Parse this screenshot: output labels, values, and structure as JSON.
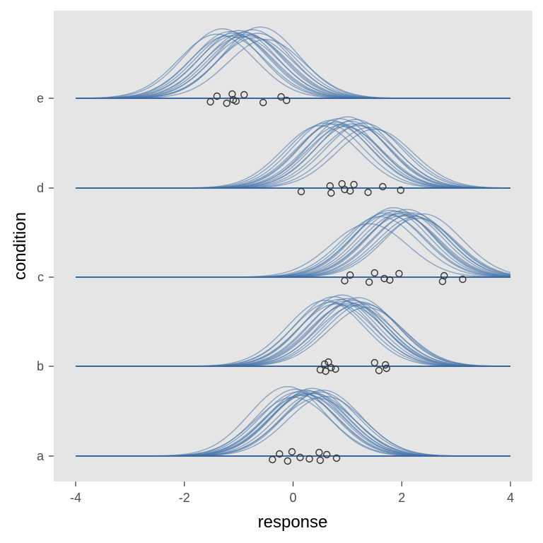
{
  "chart_data": {
    "type": "line",
    "title": "",
    "xlabel": "response",
    "ylabel": "condition",
    "xlim": [
      -4,
      4
    ],
    "x_ticks": [
      -4,
      -2,
      0,
      2,
      4
    ],
    "x_tick_labels": [
      "-4",
      "-2",
      "0",
      "2",
      "4"
    ],
    "categories": [
      "a",
      "b",
      "c",
      "d",
      "e"
    ],
    "grid": false,
    "legend": "none",
    "colors": {
      "panel_background": "#e5e5e5",
      "curve": "#4a77aa",
      "baseline": "#3a68a3",
      "point_stroke": "#333333",
      "tick": "#333333",
      "tick_label": "#4d4d4d"
    },
    "curve_sd": 0.7,
    "groups": [
      {
        "condition": "a",
        "points": [
          -0.38,
          -0.25,
          -0.1,
          -0.02,
          0.13,
          0.3,
          0.48,
          0.5,
          0.62,
          0.8
        ],
        "curve_means": [
          -0.1,
          0.0,
          0.05,
          0.1,
          0.15,
          0.2,
          0.22,
          0.25,
          0.3,
          0.3,
          0.35,
          0.4,
          0.45,
          0.5,
          0.55,
          0.6
        ],
        "curve_peaks": [
          0.78,
          0.66,
          0.75,
          0.72,
          0.68,
          0.7,
          0.74,
          0.69,
          0.71,
          0.73,
          0.76,
          0.7,
          0.65,
          0.72,
          0.74,
          0.67
        ]
      },
      {
        "condition": "b",
        "points": [
          0.5,
          0.58,
          0.6,
          0.65,
          0.7,
          0.78,
          1.5,
          1.58,
          1.7,
          1.72
        ],
        "curve_means": [
          0.6,
          0.7,
          0.75,
          0.8,
          0.85,
          0.9,
          0.95,
          1.0,
          1.0,
          1.05,
          1.1,
          1.15,
          1.2,
          1.25,
          1.3,
          1.35
        ],
        "curve_peaks": [
          0.74,
          0.72,
          0.78,
          0.7,
          0.75,
          0.8,
          0.73,
          0.69,
          0.76,
          0.71,
          0.74,
          0.68,
          0.77,
          0.72,
          0.7,
          0.66
        ]
      },
      {
        "condition": "c",
        "points": [
          0.95,
          1.05,
          1.4,
          1.5,
          1.68,
          1.78,
          1.95,
          2.75,
          2.78,
          3.12
        ],
        "curve_means": [
          1.4,
          1.6,
          1.7,
          1.75,
          1.8,
          1.85,
          1.9,
          1.95,
          2.0,
          2.05,
          2.1,
          2.15,
          2.2,
          2.25,
          2.3,
          2.4
        ],
        "curve_peaks": [
          0.6,
          0.68,
          0.72,
          0.7,
          0.75,
          0.78,
          0.74,
          0.71,
          0.69,
          0.73,
          0.76,
          0.7,
          0.72,
          0.68,
          0.66,
          0.71
        ]
      },
      {
        "condition": "d",
        "points": [
          0.15,
          0.68,
          0.7,
          0.9,
          0.95,
          1.05,
          1.12,
          1.38,
          1.65,
          1.98
        ],
        "curve_means": [
          0.5,
          0.6,
          0.7,
          0.75,
          0.8,
          0.85,
          0.9,
          0.95,
          1.0,
          1.05,
          1.1,
          1.15,
          1.2,
          1.3,
          1.4,
          1.5
        ],
        "curve_peaks": [
          0.7,
          0.73,
          0.76,
          0.72,
          0.74,
          0.78,
          0.71,
          0.69,
          0.8,
          0.75,
          0.72,
          0.77,
          0.7,
          0.73,
          0.68,
          0.66
        ]
      },
      {
        "condition": "e",
        "points": [
          -1.52,
          -1.4,
          -1.22,
          -1.12,
          -1.1,
          -1.05,
          -0.9,
          -0.55,
          -0.22,
          -0.12
        ],
        "curve_means": [
          -1.4,
          -1.3,
          -1.2,
          -1.15,
          -1.1,
          -1.05,
          -1.0,
          -0.95,
          -0.9,
          -0.85,
          -0.8,
          -0.75,
          -0.7,
          -0.65,
          -0.6,
          -0.5
        ],
        "curve_peaks": [
          0.72,
          0.78,
          0.7,
          0.75,
          0.73,
          0.71,
          0.76,
          0.69,
          0.74,
          0.72,
          0.7,
          0.77,
          0.68,
          0.73,
          0.8,
          0.66
        ]
      }
    ]
  }
}
